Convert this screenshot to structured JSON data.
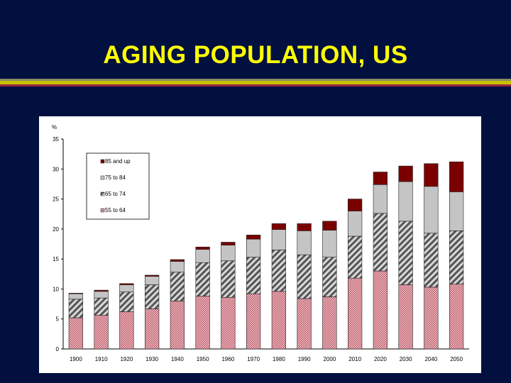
{
  "slide": {
    "title": "AGING POPULATION, US"
  },
  "colors": {
    "background": "#021040",
    "title": "#ffff00",
    "s85": "#7a0000",
    "s75": "#c0c0c0",
    "s65": "#888888",
    "s55": "#b85060"
  },
  "chart_data": {
    "type": "bar",
    "stacked": true,
    "ylabel": "%",
    "ylim": [
      0,
      35
    ],
    "yticks": [
      0,
      5,
      10,
      15,
      20,
      25,
      30,
      35
    ],
    "categories": [
      "1900",
      "1910",
      "1920",
      "1930",
      "1940",
      "1950",
      "1960",
      "1970",
      "1980",
      "1990",
      "2000",
      "2010",
      "2020",
      "2030",
      "2040",
      "2050"
    ],
    "series": [
      {
        "name": "55 to 64",
        "values": [
          5.2,
          5.6,
          6.2,
          6.7,
          8.0,
          8.8,
          8.6,
          9.2,
          9.6,
          8.4,
          8.7,
          11.8,
          13.0,
          10.7,
          10.3,
          10.8
        ]
      },
      {
        "name": "65 to 74",
        "values": [
          3.1,
          2.9,
          3.3,
          4.0,
          4.8,
          5.6,
          6.1,
          6.1,
          6.9,
          7.3,
          6.6,
          7.0,
          9.6,
          10.6,
          9.0,
          8.9
        ]
      },
      {
        "name": "75 to 84",
        "values": [
          0.9,
          1.1,
          1.2,
          1.4,
          1.8,
          2.2,
          2.6,
          3.0,
          3.4,
          4.0,
          4.5,
          4.2,
          4.8,
          6.6,
          7.8,
          6.5
        ]
      },
      {
        "name": "85 and up",
        "values": [
          0.1,
          0.2,
          0.2,
          0.2,
          0.3,
          0.4,
          0.5,
          0.7,
          1.0,
          1.2,
          1.5,
          2.0,
          2.1,
          2.6,
          3.8,
          5.0
        ]
      }
    ],
    "legend": {
      "position": "top-left",
      "entries": [
        "85 and up",
        "75 to 84",
        "65 to 74",
        "55 to 64"
      ]
    },
    "grid": false
  }
}
